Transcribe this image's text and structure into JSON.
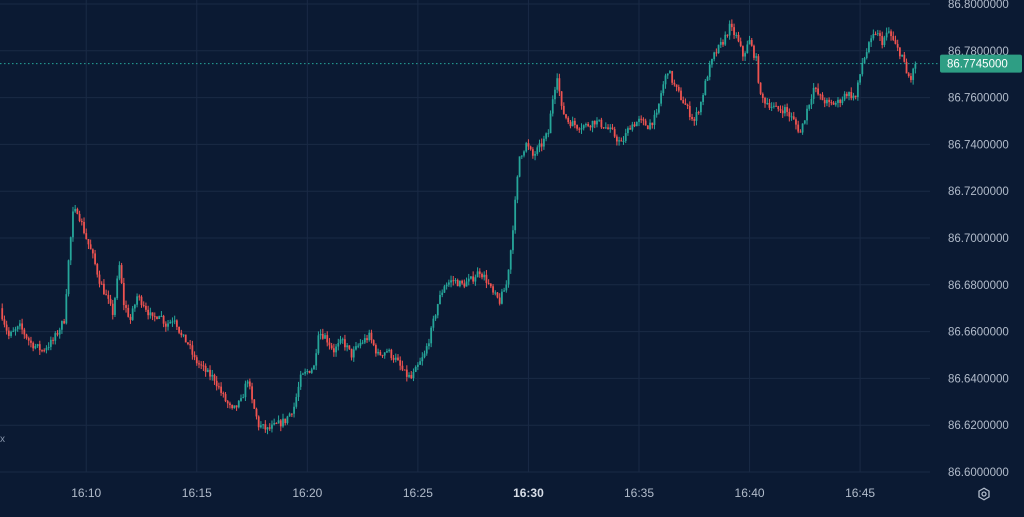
{
  "chart_data": {
    "type": "candlestick",
    "y_ticks": [
      "86.8000000",
      "86.7800000",
      "86.7600000",
      "86.7400000",
      "86.7200000",
      "86.7000000",
      "86.6800000",
      "86.6600000",
      "86.6400000",
      "86.6200000",
      "86.6000000"
    ],
    "ylim": [
      86.6,
      86.8
    ],
    "x_ticks": [
      {
        "label": "16:10",
        "t": 10,
        "bold": false
      },
      {
        "label": "16:15",
        "t": 15,
        "bold": false
      },
      {
        "label": "16:20",
        "t": 20,
        "bold": false
      },
      {
        "label": "16:25",
        "t": 25,
        "bold": false
      },
      {
        "label": "16:30",
        "t": 30,
        "bold": true
      },
      {
        "label": "16:35",
        "t": 35,
        "bold": false
      },
      {
        "label": "16:40",
        "t": 40,
        "bold": false
      },
      {
        "label": "16:45",
        "t": 45,
        "bold": false
      }
    ],
    "xlim_minutes_after_1600": [
      6.1,
      47.8
    ],
    "current_price": "86.7745000",
    "current_value": 86.7745,
    "grid": true,
    "trend": [
      [
        6.1,
        86.67
      ],
      [
        6.5,
        86.658
      ],
      [
        7.0,
        86.662
      ],
      [
        7.5,
        86.655
      ],
      [
        8.0,
        86.652
      ],
      [
        8.5,
        86.656
      ],
      [
        9.0,
        86.665
      ],
      [
        9.2,
        86.69
      ],
      [
        9.4,
        86.71
      ],
      [
        9.6,
        86.712
      ],
      [
        9.8,
        86.706
      ],
      [
        10.0,
        86.7
      ],
      [
        10.3,
        86.692
      ],
      [
        10.6,
        86.682
      ],
      [
        10.9,
        86.675
      ],
      [
        11.2,
        86.668
      ],
      [
        11.5,
        86.688
      ],
      [
        11.7,
        86.672
      ],
      [
        12.0,
        86.665
      ],
      [
        12.3,
        86.675
      ],
      [
        12.6,
        86.672
      ],
      [
        13.0,
        86.665
      ],
      [
        13.3,
        86.668
      ],
      [
        13.6,
        86.663
      ],
      [
        14.0,
        86.666
      ],
      [
        14.3,
        86.658
      ],
      [
        14.6,
        86.655
      ],
      [
        14.9,
        86.648
      ],
      [
        15.2,
        86.645
      ],
      [
        15.5,
        86.642
      ],
      [
        15.8,
        86.64
      ],
      [
        16.2,
        86.632
      ],
      [
        16.6,
        86.626
      ],
      [
        17.0,
        86.63
      ],
      [
        17.3,
        86.64
      ],
      [
        17.5,
        86.63
      ],
      [
        17.8,
        86.62
      ],
      [
        18.2,
        86.618
      ],
      [
        18.6,
        86.62
      ],
      [
        19.0,
        86.622
      ],
      [
        19.4,
        86.628
      ],
      [
        19.7,
        86.64
      ],
      [
        20.0,
        86.643
      ],
      [
        20.3,
        86.645
      ],
      [
        20.5,
        86.66
      ],
      [
        20.8,
        86.658
      ],
      [
        21.2,
        86.652
      ],
      [
        21.6,
        86.656
      ],
      [
        22.0,
        86.65
      ],
      [
        22.4,
        86.655
      ],
      [
        22.8,
        86.658
      ],
      [
        23.2,
        86.65
      ],
      [
        23.6,
        86.652
      ],
      [
        24.0,
        86.648
      ],
      [
        24.4,
        86.642
      ],
      [
        24.7,
        86.64
      ],
      [
        25.0,
        86.645
      ],
      [
        25.3,
        86.65
      ],
      [
        25.6,
        86.66
      ],
      [
        25.9,
        86.672
      ],
      [
        26.2,
        86.68
      ],
      [
        26.6,
        86.682
      ],
      [
        27.0,
        86.68
      ],
      [
        27.4,
        86.682
      ],
      [
        27.8,
        86.686
      ],
      [
        28.1,
        86.682
      ],
      [
        28.4,
        86.676
      ],
      [
        28.7,
        86.673
      ],
      [
        29.0,
        86.68
      ],
      [
        29.2,
        86.695
      ],
      [
        29.4,
        86.715
      ],
      [
        29.6,
        86.735
      ],
      [
        29.9,
        86.74
      ],
      [
        30.2,
        86.735
      ],
      [
        30.6,
        86.74
      ],
      [
        30.9,
        86.745
      ],
      [
        31.1,
        86.76
      ],
      [
        31.3,
        86.77
      ],
      [
        31.5,
        86.755
      ],
      [
        31.8,
        86.75
      ],
      [
        32.2,
        86.748
      ],
      [
        32.6,
        86.748
      ],
      [
        33.0,
        86.75
      ],
      [
        33.4,
        86.748
      ],
      [
        33.8,
        86.745
      ],
      [
        34.2,
        86.74
      ],
      [
        34.6,
        86.748
      ],
      [
        35.0,
        86.75
      ],
      [
        35.4,
        86.748
      ],
      [
        35.8,
        86.752
      ],
      [
        36.0,
        86.762
      ],
      [
        36.3,
        86.772
      ],
      [
        36.6,
        86.765
      ],
      [
        36.9,
        86.76
      ],
      [
        37.2,
        86.755
      ],
      [
        37.5,
        86.75
      ],
      [
        37.8,
        86.758
      ],
      [
        38.1,
        86.77
      ],
      [
        38.4,
        86.778
      ],
      [
        38.8,
        86.784
      ],
      [
        39.1,
        86.79
      ],
      [
        39.4,
        86.786
      ],
      [
        39.7,
        86.778
      ],
      [
        40.0,
        86.784
      ],
      [
        40.3,
        86.776
      ],
      [
        40.5,
        86.76
      ],
      [
        40.8,
        86.758
      ],
      [
        41.2,
        86.755
      ],
      [
        41.6,
        86.755
      ],
      [
        42.0,
        86.75
      ],
      [
        42.3,
        86.745
      ],
      [
        42.6,
        86.755
      ],
      [
        42.9,
        86.764
      ],
      [
        43.2,
        86.76
      ],
      [
        43.6,
        86.757
      ],
      [
        44.0,
        86.758
      ],
      [
        44.4,
        86.762
      ],
      [
        44.8,
        86.76
      ],
      [
        45.1,
        86.775
      ],
      [
        45.4,
        86.782
      ],
      [
        45.7,
        86.788
      ],
      [
        46.0,
        86.784
      ],
      [
        46.3,
        86.788
      ],
      [
        46.6,
        86.782
      ],
      [
        46.9,
        86.778
      ],
      [
        47.1,
        86.77
      ],
      [
        47.3,
        86.768
      ],
      [
        47.5,
        86.7745
      ]
    ]
  },
  "icons": {
    "settings": "settings-gear-icon"
  },
  "ui": {
    "edge_marker": "x"
  },
  "colors": {
    "background": "#0b1a33",
    "grid": "#1a2a45",
    "up": "#26a69a",
    "down": "#ef5350",
    "axis_text": "#b2bccb",
    "axis_text_bold": "#d8dee8",
    "price_tag": "#2e9e84"
  }
}
